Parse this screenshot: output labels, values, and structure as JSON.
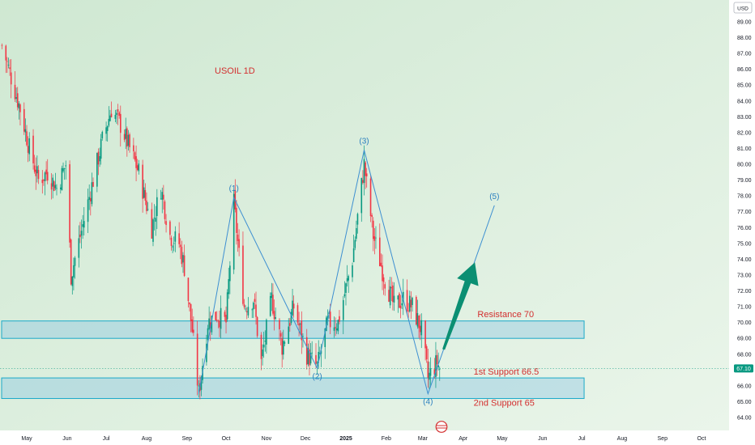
{
  "currency_label": "USD",
  "chart_data": {
    "type": "candlestick",
    "title": "USOIL 1D",
    "ylim": [
      63.5,
      89.5
    ],
    "y_ticks": [
      "64.00",
      "65.00",
      "66.00",
      "67.00",
      "68.00",
      "69.00",
      "70.00",
      "71.00",
      "72.00",
      "73.00",
      "74.00",
      "75.00",
      "76.00",
      "77.00",
      "78.00",
      "79.00",
      "80.00",
      "81.00",
      "82.00",
      "83.00",
      "84.00",
      "85.00",
      "86.00",
      "87.00",
      "88.00",
      "89.00"
    ],
    "x_ticks": [
      {
        "label": "May",
        "date": "2024-05-01",
        "bold": false
      },
      {
        "label": "Jun",
        "date": "2024-06-01",
        "bold": false
      },
      {
        "label": "Jul",
        "date": "2024-07-01",
        "bold": false
      },
      {
        "label": "Aug",
        "date": "2024-08-01",
        "bold": false
      },
      {
        "label": "Sep",
        "date": "2024-09-01",
        "bold": false
      },
      {
        "label": "Oct",
        "date": "2024-10-01",
        "bold": false
      },
      {
        "label": "Nov",
        "date": "2024-11-01",
        "bold": false
      },
      {
        "label": "Dec",
        "date": "2024-12-01",
        "bold": false
      },
      {
        "label": "2025",
        "date": "2025-01-01",
        "bold": true
      },
      {
        "label": "Feb",
        "date": "2025-02-01",
        "bold": false
      },
      {
        "label": "Mar",
        "date": "2025-03-01",
        "bold": false
      },
      {
        "label": "Apr",
        "date": "2025-04-01",
        "bold": false
      },
      {
        "label": "May",
        "date": "2025-05-01",
        "bold": false
      },
      {
        "label": "Jun",
        "date": "2025-06-01",
        "bold": false
      },
      {
        "label": "Jul",
        "date": "2025-07-01",
        "bold": false
      },
      {
        "label": "Aug",
        "date": "2025-08-01",
        "bold": false
      },
      {
        "label": "Sep",
        "date": "2025-09-01",
        "bold": false
      },
      {
        "label": "Oct",
        "date": "2025-10-01",
        "bold": false
      }
    ],
    "last_price": {
      "value": 67.1,
      "label": "67.10"
    },
    "price_path": [
      {
        "date": "2024-04-12",
        "close": 87.5
      },
      {
        "date": "2024-04-19",
        "close": 85.5
      },
      {
        "date": "2024-04-26",
        "close": 83.5
      },
      {
        "date": "2024-05-03",
        "close": 81.0
      },
      {
        "date": "2024-05-10",
        "close": 79.0
      },
      {
        "date": "2024-05-17",
        "close": 79.5
      },
      {
        "date": "2024-05-24",
        "close": 78.5
      },
      {
        "date": "2024-05-31",
        "close": 80.0
      },
      {
        "date": "2024-06-04",
        "close": 73.0
      },
      {
        "date": "2024-06-14",
        "close": 76.5
      },
      {
        "date": "2024-06-21",
        "close": 79.0
      },
      {
        "date": "2024-06-28",
        "close": 81.5
      },
      {
        "date": "2024-07-05",
        "close": 83.5
      },
      {
        "date": "2024-07-12",
        "close": 82.5
      },
      {
        "date": "2024-07-19",
        "close": 81.0
      },
      {
        "date": "2024-07-26",
        "close": 79.5
      },
      {
        "date": "2024-08-05",
        "close": 76.0
      },
      {
        "date": "2024-08-12",
        "close": 78.5
      },
      {
        "date": "2024-08-19",
        "close": 75.5
      },
      {
        "date": "2024-08-26",
        "close": 75.0
      },
      {
        "date": "2024-08-30",
        "close": 73.5
      },
      {
        "date": "2024-09-05",
        "close": 69.5
      },
      {
        "date": "2024-09-10",
        "close": 65.5
      },
      {
        "date": "2024-09-17",
        "close": 70.0
      },
      {
        "date": "2024-09-24",
        "close": 70.5
      },
      {
        "date": "2024-10-01",
        "close": 70.0
      },
      {
        "date": "2024-10-07",
        "close": 77.5
      },
      {
        "date": "2024-10-15",
        "close": 71.0
      },
      {
        "date": "2024-10-22",
        "close": 71.5
      },
      {
        "date": "2024-10-28",
        "close": 67.5
      },
      {
        "date": "2024-11-05",
        "close": 71.5
      },
      {
        "date": "2024-11-13",
        "close": 68.5
      },
      {
        "date": "2024-11-22",
        "close": 71.0
      },
      {
        "date": "2024-12-02",
        "close": 68.0
      },
      {
        "date": "2024-12-10",
        "close": 67.2
      },
      {
        "date": "2024-12-18",
        "close": 70.0
      },
      {
        "date": "2024-12-26",
        "close": 70.0
      },
      {
        "date": "2025-01-06",
        "close": 74.0
      },
      {
        "date": "2025-01-15",
        "close": 80.0
      },
      {
        "date": "2025-01-22",
        "close": 75.5
      },
      {
        "date": "2025-01-30",
        "close": 73.0
      },
      {
        "date": "2025-02-07",
        "close": 71.0
      },
      {
        "date": "2025-02-14",
        "close": 71.5
      },
      {
        "date": "2025-02-21",
        "close": 71.0
      },
      {
        "date": "2025-02-28",
        "close": 69.5
      },
      {
        "date": "2025-03-05",
        "close": 66.5
      },
      {
        "date": "2025-03-12",
        "close": 67.5
      },
      {
        "date": "2025-03-14",
        "close": 67.1
      }
    ],
    "zones": [
      {
        "name": "resistance-zone",
        "low": 69.0,
        "high": 70.1,
        "from": "2024-04-10",
        "to": "2025-07-01",
        "label": "Resistance  70",
        "label_date": "2025-04-12",
        "label_price": 70.35
      },
      {
        "name": "support-zone",
        "low": 65.2,
        "high": 66.5,
        "from": "2024-04-10",
        "to": "2025-07-01",
        "label": "1st Support 66.5",
        "label_price": 66.7,
        "label2": "2nd Support 65",
        "label2_price": 64.75,
        "label_date": "2025-04-09"
      }
    ],
    "elliott_waves": [
      {
        "date": "2024-09-10",
        "price": 65.5,
        "label": ""
      },
      {
        "date": "2024-10-07",
        "price": 77.9,
        "label": "(1)"
      },
      {
        "date": "2024-12-10",
        "price": 67.1,
        "label": "(2)"
      },
      {
        "date": "2025-01-15",
        "price": 80.9,
        "label": "(3)"
      },
      {
        "date": "2025-03-05",
        "price": 65.5,
        "label": "(4)"
      },
      {
        "date": "2025-04-25",
        "price": 77.4,
        "label": "(5)"
      }
    ],
    "arrow": {
      "from_date": "2025-03-17",
      "from_price": 68.3,
      "to_date": "2025-04-10",
      "to_price": 73.8,
      "color": "#0b8f73"
    }
  }
}
